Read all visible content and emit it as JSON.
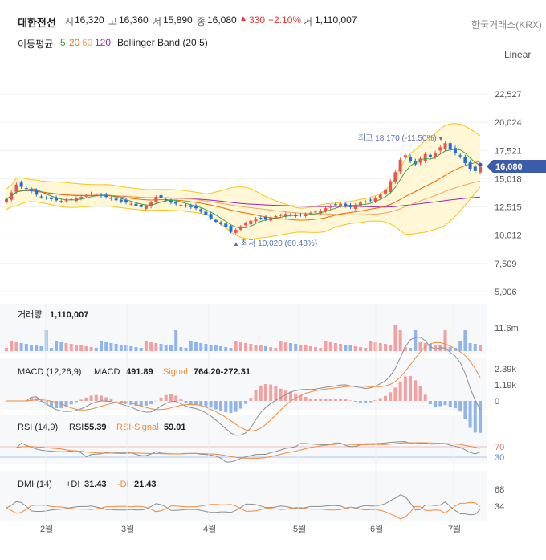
{
  "header": {
    "name": "대한전선",
    "open_label": "시",
    "open": "16,320",
    "high_label": "고",
    "high": "16,360",
    "low_label": "저",
    "low": "15,890",
    "close_label": "종",
    "close": "16,080",
    "change_arrow": "▲",
    "change": "330",
    "change_pct": "+2.10%",
    "volume_label": "거",
    "volume": "1,110,007",
    "exchange": "한국거래소(KRX)",
    "scale_mode": "Linear"
  },
  "ma_legend": {
    "label": "이동평균",
    "p5": "5",
    "p20": "20",
    "p60": "60",
    "p120": "120",
    "bb": "Bollinger Band (20,5)"
  },
  "colors": {
    "up": "#ef5350",
    "down": "#1e6fd9",
    "ma5": "#43a047",
    "ma20": "#ef6c00",
    "ma60": "#f4a261",
    "ma120": "#9c27b0",
    "bb": "#f5c518",
    "bb_fill": "#fff7d6",
    "last_tag": "#3b5bab",
    "macd": "#8d8d8d",
    "signal": "#f08a3c"
  },
  "annotations": {
    "max": "최고 18,170 (-11.50%)",
    "min": "최저 10,020 (60.48%)",
    "last_price": "16,080"
  },
  "panels": {
    "volume": {
      "label": "거래량",
      "value": "1,110,007"
    },
    "macd": {
      "label": "MACD (12,26,9)",
      "macd_label": "MACD",
      "macd_value": "491.89",
      "signal_label": "Signal",
      "signal_value": "764.20-272.31"
    },
    "rsi": {
      "label": "RSI (14,9)",
      "rsi_label": "RSI",
      "rsi_value": "55.39",
      "signal_label": "RSI-Signal",
      "signal_value": "59.01"
    },
    "dmi": {
      "label": "DMI (14)",
      "pdi_label": "+DI",
      "pdi_value": "31.43",
      "mdi_label": "-DI",
      "mdi_value": "21.43"
    }
  },
  "chart_data": [
    {
      "type": "candlestick",
      "title": "대한전선",
      "ylim": [
        5006,
        25030
      ],
      "y_ticks": [
        "22,527",
        "20,024",
        "17,521",
        "15,018",
        "12,515",
        "10,012",
        "7,509",
        "5,006"
      ],
      "x_ticks": [
        "2월",
        "3월",
        "4월",
        "5월",
        "6월",
        "7월"
      ],
      "close_series": [
        13200,
        13800,
        14500,
        14300,
        14100,
        13900,
        13600,
        13400,
        13300,
        13200,
        13100,
        13050,
        13100,
        13200,
        13300,
        13400,
        13500,
        13700,
        13600,
        13500,
        13400,
        13300,
        13100,
        13000,
        12900,
        12800,
        12600,
        12500,
        12600,
        12900,
        13400,
        13300,
        13100,
        12900,
        12800,
        12700,
        12600,
        12500,
        12400,
        12100,
        11800,
        11500,
        11200,
        11000,
        10700,
        10300,
        10500,
        10800,
        11100,
        11300,
        11500,
        11500,
        11400,
        11600,
        11700,
        11800,
        11900,
        11800,
        11700,
        11800,
        11900,
        12000,
        12100,
        12200,
        12400,
        12600,
        12700,
        12800,
        12600,
        12500,
        12700,
        12900,
        13000,
        13100,
        13300,
        13600,
        14000,
        14800,
        15600,
        16700,
        17100,
        16600,
        16300,
        16800,
        17200,
        16900,
        17300,
        17800,
        18170,
        17600,
        17300,
        17000,
        16400,
        15900,
        15700,
        16080
      ],
      "max": 18170,
      "min": 10020,
      "last": 16080
    },
    {
      "type": "bar",
      "title": "거래량",
      "y_ticks": [
        "11.6m"
      ]
    },
    {
      "type": "line",
      "title": "MACD (12,26,9)",
      "series": [
        {
          "name": "MACD",
          "last": 491.89
        },
        {
          "name": "Signal",
          "last": 764.2
        }
      ],
      "y_ticks": [
        "2.39k",
        "1.19k",
        "0"
      ]
    },
    {
      "type": "line",
      "title": "RSI (14,9)",
      "series": [
        {
          "name": "RSI",
          "last": 55.39
        },
        {
          "name": "RSI-Signal",
          "last": 59.01
        }
      ],
      "y_ticks": [
        "70",
        "30"
      ]
    },
    {
      "type": "line",
      "title": "DMI (14)",
      "series": [
        {
          "name": "+DI",
          "last": 31.43
        },
        {
          "name": "-DI",
          "last": 21.43
        }
      ],
      "y_ticks": [
        "68",
        "34"
      ]
    }
  ]
}
